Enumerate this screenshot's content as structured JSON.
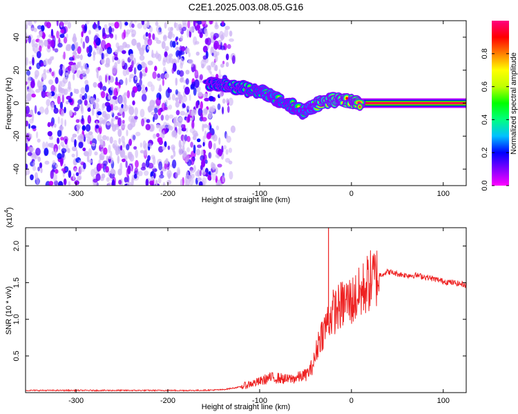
{
  "title": "C2E1.2025.003.08.05.G16",
  "chart_data": [
    {
      "type": "heatmap",
      "xlabel": "Height of straight line (km)",
      "ylabel": "Frequency (Hz)",
      "xlim": [
        -355,
        125
      ],
      "ylim": [
        -50,
        50
      ],
      "x_ticks": [
        -300,
        -200,
        -100,
        0,
        100
      ],
      "y_ticks": [
        -40,
        -20,
        0,
        20,
        40
      ],
      "colorbar": {
        "label": "Normalized spectral amplitude",
        "range": [
          0,
          1
        ],
        "ticks": [
          0.0,
          0.2,
          0.4,
          0.6,
          0.8
        ],
        "tick_labels": [
          "0.0",
          "0.2",
          "0.4",
          "0.6",
          "0.8"
        ],
        "colormap": [
          "#ff00ff",
          "#8000ff",
          "#0000ff",
          "#00c0ff",
          "#00ff80",
          "#00ff00",
          "#c0ff00",
          "#ffff00",
          "#ff8000",
          "#ff0000",
          "#ff0080"
        ]
      },
      "noise_region": {
        "x_start": -355,
        "x_end": -128,
        "amplitude": [
          0.05,
          0.2
        ]
      },
      "signal_track": [
        {
          "x": -155,
          "freq": 12,
          "amp": 0.45
        },
        {
          "x": -140,
          "freq": 11,
          "amp": 0.5
        },
        {
          "x": -120,
          "freq": 9,
          "amp": 0.5
        },
        {
          "x": -100,
          "freq": 7,
          "amp": 0.55
        },
        {
          "x": -85,
          "freq": 4,
          "amp": 0.6
        },
        {
          "x": -70,
          "freq": 0,
          "amp": 0.55
        },
        {
          "x": -55,
          "freq": -5,
          "amp": 0.6
        },
        {
          "x": -45,
          "freq": -3,
          "amp": 0.6
        },
        {
          "x": -35,
          "freq": 0,
          "amp": 0.75
        },
        {
          "x": -20,
          "freq": 2,
          "amp": 0.8
        },
        {
          "x": -5,
          "freq": 1,
          "amp": 0.85
        },
        {
          "x": 10,
          "freq": 0,
          "amp": 0.95
        },
        {
          "x": 125,
          "freq": 0,
          "amp": 0.95
        }
      ]
    },
    {
      "type": "line",
      "xlabel": "Height of straight line (km)",
      "ylabel": "SNR (10 * v/v)",
      "y_multiplier_label": "(x10",
      "y_multiplier_exp": "4",
      "y_multiplier_close": ")",
      "xlim": [
        -355,
        125
      ],
      "ylim": [
        0,
        2.25
      ],
      "x_ticks": [
        -300,
        -200,
        -100,
        0,
        100
      ],
      "y_ticks": [
        0.5,
        1.0,
        1.5,
        2.0
      ],
      "y_tick_labels": [
        "0.5",
        "1.0",
        "1.5",
        "2.0"
      ],
      "line_color": "#ee2222",
      "spike": {
        "x": -25,
        "y": 2.25
      },
      "series": [
        {
          "x": [
            -355,
            -300,
            -250,
            -200,
            -170,
            -150,
            -140,
            -130,
            -120,
            -110,
            -100,
            -90,
            -80,
            -70,
            -60,
            -50,
            -45,
            -40,
            -35,
            -30,
            -25,
            -20,
            -15,
            -10,
            -5,
            0,
            5,
            10,
            15,
            20,
            25,
            30,
            40,
            50,
            60,
            70,
            80,
            90,
            100,
            110,
            120,
            125
          ],
          "y": [
            0.03,
            0.03,
            0.03,
            0.03,
            0.03,
            0.035,
            0.04,
            0.06,
            0.08,
            0.12,
            0.15,
            0.2,
            0.2,
            0.18,
            0.2,
            0.24,
            0.3,
            0.45,
            0.75,
            0.85,
            1.0,
            1.1,
            1.15,
            1.2,
            1.25,
            1.25,
            1.3,
            1.35,
            1.45,
            1.52,
            1.57,
            1.6,
            1.65,
            1.62,
            1.6,
            1.6,
            1.58,
            1.55,
            1.52,
            1.5,
            1.48,
            1.47
          ]
        }
      ]
    }
  ]
}
